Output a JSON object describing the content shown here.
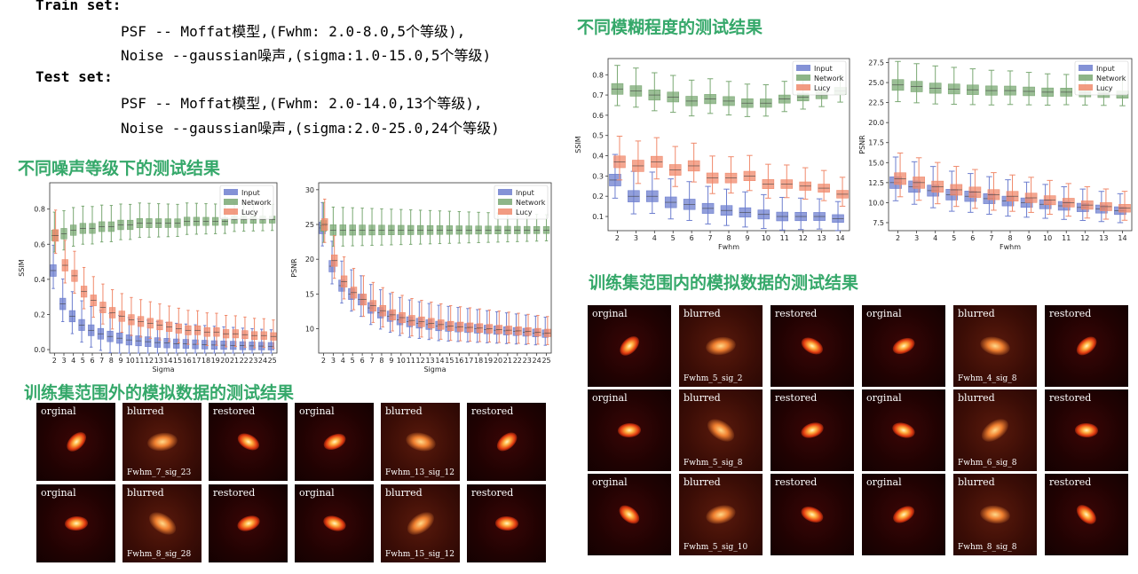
{
  "setup": {
    "train_title": "Train set:",
    "train_psf": "PSF -- Moffat模型,(Fwhm: 2.0-8.0,5个等级),",
    "train_noise": "Noise --gaussian噪声,(sigma:1.0-15.0,5个等级)",
    "test_title": "Test set:",
    "test_psf": "PSF -- Moffat模型,(Fwhm: 2.0-14.0,13个等级),",
    "test_noise": "Noise --gaussian噪声,(sigma:2.0-25.0,24个等级)"
  },
  "headings": {
    "noise": "不同噪声等级下的测试结果",
    "blur": "不同模糊程度的测试结果",
    "outside": "训练集范围外的模拟数据的测试结果",
    "inside": "训练集范围内的模拟数据的测试结果"
  },
  "colors": {
    "input": "#6e7fcf",
    "network": "#7aa873",
    "lucy": "#f08a6c",
    "heading": "#35a86a"
  },
  "chart_data": [
    {
      "id": "noise_ssim",
      "type": "box",
      "xlabel": "Sigma",
      "ylabel": "SSIM",
      "ylim": [
        -0.02,
        0.95
      ],
      "categories": [
        "2",
        "3",
        "4",
        "5",
        "6",
        "7",
        "8",
        "9",
        "10",
        "11",
        "12",
        "13",
        "14",
        "15",
        "16",
        "17",
        "18",
        "19",
        "20",
        "21",
        "22",
        "23",
        "24",
        "25"
      ],
      "yticks": [
        0.0,
        0.2,
        0.4,
        0.6,
        0.8
      ],
      "ytick_labels": [
        "0.0",
        "0.2",
        "0.4",
        "0.6",
        "0.8"
      ],
      "legend": [
        "Input",
        "Network",
        "Lucy"
      ],
      "legend_position": "top-right",
      "series": [
        {
          "name": "Input",
          "median": [
            0.45,
            0.26,
            0.19,
            0.14,
            0.11,
            0.09,
            0.075,
            0.065,
            0.055,
            0.05,
            0.045,
            0.04,
            0.037,
            0.034,
            0.032,
            0.03,
            0.028,
            0.026,
            0.025,
            0.024,
            0.022,
            0.021,
            0.02,
            0.019
          ]
        },
        {
          "name": "Network",
          "median": [
            0.65,
            0.66,
            0.68,
            0.69,
            0.69,
            0.7,
            0.7,
            0.71,
            0.71,
            0.72,
            0.72,
            0.72,
            0.72,
            0.72,
            0.73,
            0.73,
            0.73,
            0.73,
            0.73,
            0.74,
            0.74,
            0.74,
            0.74,
            0.74
          ]
        },
        {
          "name": "Lucy",
          "median": [
            0.65,
            0.48,
            0.42,
            0.33,
            0.28,
            0.24,
            0.21,
            0.19,
            0.17,
            0.16,
            0.15,
            0.14,
            0.13,
            0.12,
            0.11,
            0.11,
            0.1,
            0.1,
            0.09,
            0.09,
            0.085,
            0.08,
            0.08,
            0.075
          ]
        }
      ]
    },
    {
      "id": "noise_psnr",
      "type": "box",
      "xlabel": "Sigma",
      "ylabel": "PSNR",
      "ylim": [
        6.5,
        31
      ],
      "categories": [
        "2",
        "3",
        "4",
        "5",
        "6",
        "7",
        "8",
        "9",
        "10",
        "11",
        "12",
        "13",
        "14",
        "15",
        "16",
        "17",
        "18",
        "19",
        "20",
        "21",
        "22",
        "23",
        "24",
        "25"
      ],
      "yticks": [
        10,
        15,
        20,
        25,
        30
      ],
      "ytick_labels": [
        "10",
        "15",
        "20",
        "25",
        "30"
      ],
      "legend": [
        "Input",
        "Network",
        "Lucy"
      ],
      "legend_position": "top-right",
      "series": [
        {
          "name": "Input",
          "median": [
            24.5,
            19,
            16.2,
            15,
            14.2,
            13,
            12.3,
            11.8,
            11.3,
            11,
            10.8,
            10.6,
            10.4,
            10.3,
            10.2,
            10.1,
            10,
            9.9,
            9.8,
            9.7,
            9.6,
            9.5,
            9.4,
            9.3
          ]
        },
        {
          "name": "Network",
          "median": [
            24.8,
            24.2,
            24.2,
            24.2,
            24.2,
            24.2,
            24.2,
            24.2,
            24.2,
            24.2,
            24.2,
            24.2,
            24.2,
            24.2,
            24.2,
            24.2,
            24.2,
            24.2,
            24.2,
            24.2,
            24.2,
            24.2,
            24.2,
            24.2
          ]
        },
        {
          "name": "Lucy",
          "median": [
            25,
            19.8,
            16.8,
            15.2,
            14.2,
            13.3,
            12.6,
            12,
            11.6,
            11.2,
            11,
            10.8,
            10.6,
            10.4,
            10.3,
            10.2,
            10.1,
            10,
            9.9,
            9.8,
            9.7,
            9.6,
            9.5,
            9.4
          ]
        }
      ]
    },
    {
      "id": "blur_ssim",
      "type": "box",
      "xlabel": "Fwhm",
      "ylabel": "SSIM",
      "ylim": [
        0.03,
        0.88
      ],
      "categories": [
        "2",
        "3",
        "4",
        "5",
        "6",
        "7",
        "8",
        "9",
        "10",
        "11",
        "12",
        "13",
        "14"
      ],
      "yticks": [
        0.1,
        0.2,
        0.3,
        0.4,
        0.5,
        0.6,
        0.7,
        0.8
      ],
      "ytick_labels": [
        "0.1",
        "0.2",
        "0.3",
        "0.4",
        "0.5",
        "0.6",
        "0.7",
        "0.8"
      ],
      "legend": [
        "Input",
        "Network",
        "Lucy"
      ],
      "legend_position": "top-right",
      "series": [
        {
          "name": "Input",
          "median": [
            0.28,
            0.2,
            0.2,
            0.17,
            0.16,
            0.14,
            0.13,
            0.12,
            0.11,
            0.1,
            0.1,
            0.1,
            0.09
          ]
        },
        {
          "name": "Network",
          "median": [
            0.73,
            0.72,
            0.7,
            0.69,
            0.67,
            0.68,
            0.67,
            0.66,
            0.66,
            0.68,
            0.69,
            0.7,
            0.72
          ]
        },
        {
          "name": "Lucy",
          "median": [
            0.37,
            0.35,
            0.37,
            0.33,
            0.35,
            0.29,
            0.29,
            0.3,
            0.26,
            0.26,
            0.25,
            0.24,
            0.21
          ]
        }
      ]
    },
    {
      "id": "blur_psnr",
      "type": "box",
      "xlabel": "Fwhm",
      "ylabel": "PSNR",
      "ylim": [
        6.5,
        28
      ],
      "categories": [
        "2",
        "3",
        "4",
        "5",
        "6",
        "7",
        "8",
        "9",
        "10",
        "11",
        "12",
        "13",
        "14"
      ],
      "yticks": [
        7.5,
        10,
        12.5,
        15,
        17.5,
        20,
        22.5,
        25,
        27.5
      ],
      "ytick_labels": [
        "7.5",
        "10.0",
        "12.5",
        "15.0",
        "17.5",
        "20.0",
        "22.5",
        "25.0",
        "27.5"
      ],
      "legend": [
        "Input",
        "Network",
        "Lucy"
      ],
      "legend_position": "top-right",
      "series": [
        {
          "name": "Input",
          "median": [
            12.5,
            12,
            11.5,
            11,
            10.8,
            10.5,
            10.2,
            10,
            9.8,
            9.6,
            9.4,
            9.2,
            9
          ]
        },
        {
          "name": "Network",
          "median": [
            24.7,
            24.5,
            24.3,
            24.2,
            24.1,
            24,
            24,
            23.9,
            23.8,
            23.8,
            23.7,
            23.6,
            23.5
          ]
        },
        {
          "name": "Lucy",
          "median": [
            13,
            12.5,
            12,
            11.6,
            11.3,
            11,
            10.8,
            10.6,
            10.3,
            10,
            9.7,
            9.5,
            9.3
          ]
        }
      ]
    }
  ],
  "outside_gallery": {
    "tiles": [
      {
        "label": "orginal",
        "sub": ""
      },
      {
        "label": "blurred",
        "sub": "Fwhm_7_sig_23"
      },
      {
        "label": "restored",
        "sub": ""
      },
      {
        "label": "orginal",
        "sub": ""
      },
      {
        "label": "blurred",
        "sub": "Fwhm_13_sig_12"
      },
      {
        "label": "restored",
        "sub": ""
      },
      {
        "label": "orginal",
        "sub": ""
      },
      {
        "label": "blurred",
        "sub": "Fwhm_8_sig_28"
      },
      {
        "label": "restored",
        "sub": ""
      },
      {
        "label": "orginal",
        "sub": ""
      },
      {
        "label": "blurred",
        "sub": "Fwhm_15_sig_12"
      },
      {
        "label": "restored",
        "sub": ""
      }
    ]
  },
  "inside_gallery": {
    "tiles": [
      {
        "label": "orginal",
        "sub": ""
      },
      {
        "label": "blurred",
        "sub": "Fwhm_5_sig_2"
      },
      {
        "label": "restored",
        "sub": ""
      },
      {
        "label": "orginal",
        "sub": ""
      },
      {
        "label": "blurred",
        "sub": "Fwhm_4_sig_8"
      },
      {
        "label": "restored",
        "sub": ""
      },
      {
        "label": "orginal",
        "sub": ""
      },
      {
        "label": "blurred",
        "sub": "Fwhm_5_sig_8"
      },
      {
        "label": "restored",
        "sub": ""
      },
      {
        "label": "orginal",
        "sub": ""
      },
      {
        "label": "blurred",
        "sub": "Fwhm_6_sig_8"
      },
      {
        "label": "restored",
        "sub": ""
      },
      {
        "label": "orginal",
        "sub": ""
      },
      {
        "label": "blurred",
        "sub": "Fwhm_5_sig_10"
      },
      {
        "label": "restored",
        "sub": ""
      },
      {
        "label": "orginal",
        "sub": ""
      },
      {
        "label": "blurred",
        "sub": "Fwhm_8_sig_8"
      },
      {
        "label": "restored",
        "sub": ""
      }
    ]
  }
}
